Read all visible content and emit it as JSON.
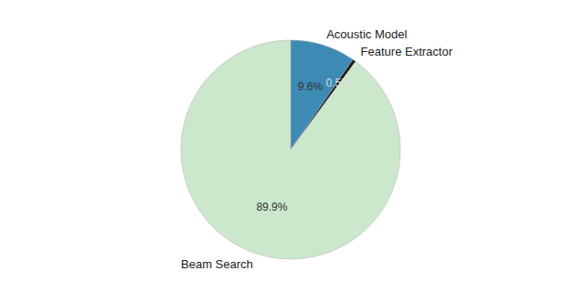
{
  "chart_data": {
    "type": "pie",
    "categories": [
      "Acoustic Model",
      "Feature Extractor",
      "Beam Search"
    ],
    "values": [
      9.6,
      0.5,
      89.9
    ],
    "value_labels": [
      "9.6%",
      "0.5%",
      "89.9%"
    ],
    "colors": [
      "#3d8ab5",
      "#1a1a1a",
      "#cce8cc"
    ],
    "data_labels": true
  }
}
